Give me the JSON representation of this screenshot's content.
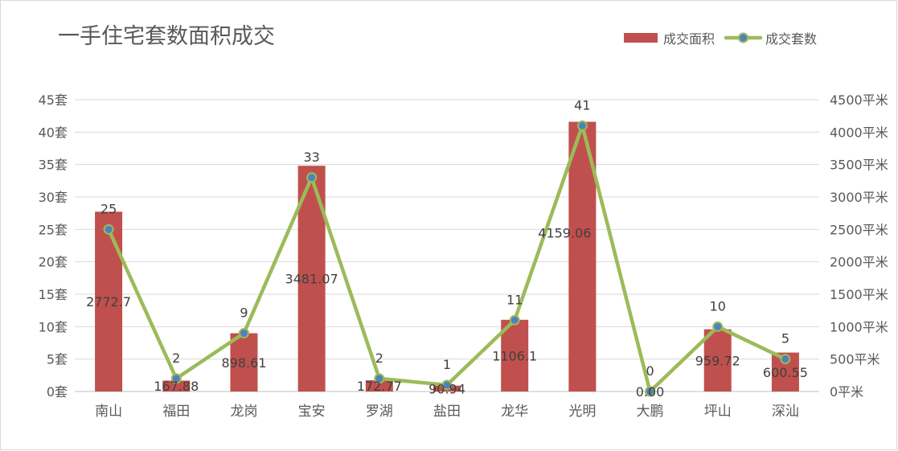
{
  "chart_data": {
    "type": "bar",
    "title": "一手住宅套数面积成交",
    "categories": [
      "南山",
      "福田",
      "龙岗",
      "宝安",
      "罗湖",
      "盐田",
      "龙华",
      "光明",
      "大鹏",
      "坪山",
      "深汕"
    ],
    "series": [
      {
        "name": "成交面积",
        "type": "bar",
        "axis": "right",
        "values": [
          2772.7,
          167.88,
          898.61,
          3481.07,
          172.77,
          90.94,
          1106.1,
          4159.06,
          0.0,
          959.72,
          600.55
        ],
        "data_labels": [
          "2772.7",
          "167.88",
          "898.61",
          "3481.07",
          "172.77",
          "90.94",
          "1106.1",
          "4159.06",
          "0.00",
          "959.72",
          "600.55"
        ]
      },
      {
        "name": "成交套数",
        "type": "line",
        "axis": "left",
        "values": [
          25,
          2,
          9,
          33,
          2,
          1,
          11,
          41,
          0,
          10,
          5
        ],
        "data_labels": [
          "25",
          "2",
          "9",
          "33",
          "2",
          "1",
          "11",
          "41",
          "0",
          "10",
          "5"
        ]
      }
    ],
    "y_left": {
      "range": [
        0,
        45
      ],
      "ticks": [
        "0套",
        "5套",
        "10套",
        "15套",
        "20套",
        "25套",
        "30套",
        "35套",
        "40套",
        "45套"
      ]
    },
    "y_right": {
      "range": [
        0,
        4500
      ],
      "ticks": [
        "0平米",
        "500平米",
        "1000平米",
        "1500平米",
        "2000平米",
        "2500平米",
        "3000平米",
        "3500平米",
        "4000平米",
        "4500平米"
      ]
    },
    "grid": true,
    "legend_position": "top-right"
  },
  "colors": {
    "bar": "#c0504d",
    "line": "#9bbb59",
    "marker": "#4f81bd"
  }
}
